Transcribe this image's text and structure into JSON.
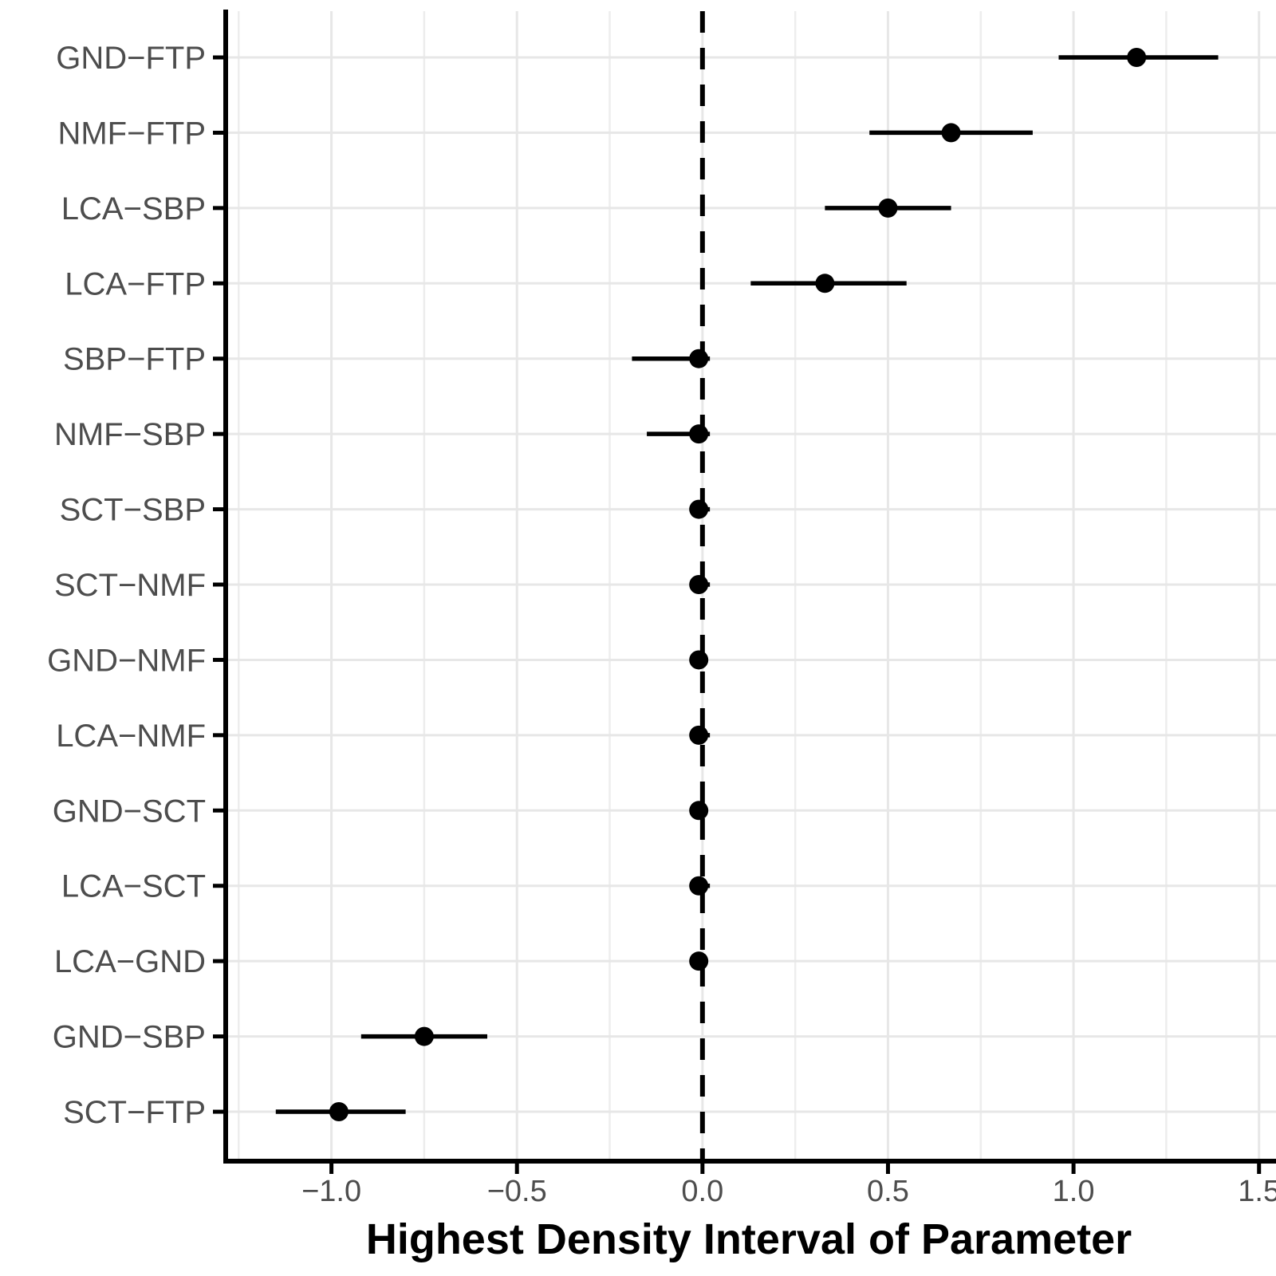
{
  "figure": {
    "background": "#ffffff"
  },
  "chart_data": {
    "type": "scatter",
    "subtype": "dot-interval-forest",
    "orientation": "horizontal",
    "title": "",
    "xlabel": "Highest Density Interval of Parameter",
    "ylabel": "",
    "categories": [
      "GND−FTP",
      "NMF−FTP",
      "LCA−SBP",
      "LCA−FTP",
      "SBP−FTP",
      "NMF−SBP",
      "SCT−SBP",
      "SCT−NMF",
      "GND−NMF",
      "LCA−NMF",
      "GND−SCT",
      "LCA−SCT",
      "LCA−GND",
      "GND−SBP",
      "SCT−FTP"
    ],
    "series": [
      {
        "name": "point_estimate",
        "values": [
          1.17,
          0.67,
          0.5,
          0.33,
          -0.01,
          -0.01,
          -0.01,
          -0.01,
          -0.01,
          -0.01,
          -0.01,
          -0.01,
          -0.01,
          -0.75,
          -0.98
        ]
      },
      {
        "name": "hdi_lower",
        "values": [
          0.96,
          0.45,
          0.33,
          0.13,
          -0.19,
          -0.15,
          -0.03,
          -0.03,
          -0.02,
          -0.03,
          -0.02,
          -0.03,
          -0.02,
          -0.92,
          -1.15
        ]
      },
      {
        "name": "hdi_upper",
        "values": [
          1.39,
          0.89,
          0.67,
          0.55,
          0.02,
          0.02,
          0.02,
          0.02,
          0.01,
          0.02,
          0.01,
          0.02,
          0.01,
          -0.58,
          -0.8
        ]
      }
    ],
    "x_ticks": {
      "values": [
        -1.0,
        -0.5,
        0.0,
        0.5,
        1.0,
        1.5
      ],
      "labels": [
        "−1.0",
        "−0.5",
        "0.0",
        "0.5",
        "1.0",
        "1.5"
      ]
    },
    "xlim": [
      -1.285,
      1.535
    ],
    "reference_line": {
      "x": 0.0,
      "style": "dashed",
      "color": "#000000"
    },
    "grid": {
      "show": true,
      "major_step": 0.5,
      "minor_step": 0.25
    },
    "legend": "none",
    "colors": {
      "ink": "#000000",
      "axis_text": "#4d4d4d",
      "grid_major": "#e7e7e7",
      "grid_minor": "#ededed",
      "background": "#ffffff"
    }
  }
}
